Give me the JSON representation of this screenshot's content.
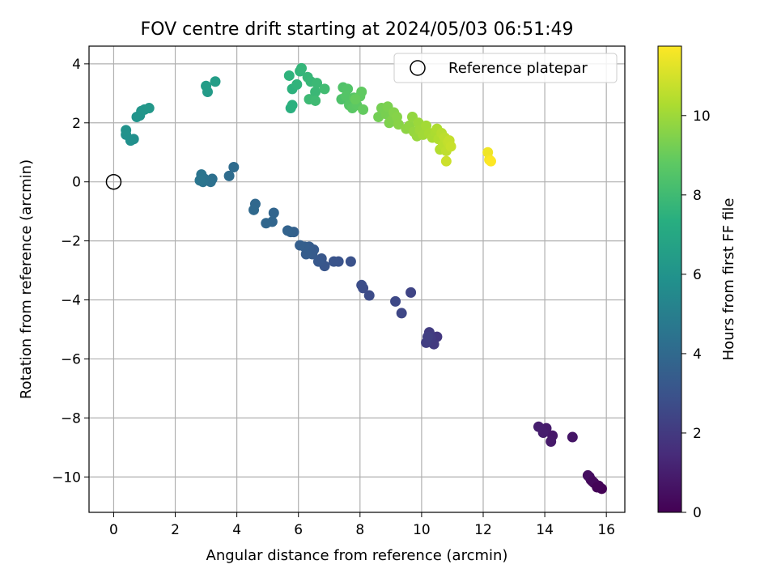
{
  "chart_data": {
    "type": "scatter",
    "title": "FOV centre drift starting at 2024/05/03 06:51:49",
    "xlabel": "Angular distance from reference (arcmin)",
    "ylabel": "Rotation from reference (arcmin)",
    "xlim": [
      -0.8,
      16.6
    ],
    "ylim": [
      -11.2,
      4.6
    ],
    "xticks": [
      0,
      2,
      4,
      6,
      8,
      10,
      12,
      14,
      16
    ],
    "yticks": [
      4,
      2,
      0,
      -2,
      -4,
      -6,
      -8,
      -10
    ],
    "xtick_labels": [
      "0",
      "2",
      "4",
      "6",
      "8",
      "10",
      "12",
      "14",
      "16"
    ],
    "ytick_labels": [
      "4",
      "2",
      "0",
      "−2",
      "−4",
      "−6",
      "−8",
      "−10"
    ],
    "grid": true,
    "legend": {
      "position": "top-right",
      "entries": [
        {
          "label": "Reference platepar",
          "marker": "open-circle",
          "x": 0,
          "y": 0
        }
      ]
    },
    "colorbar": {
      "label": "Hours from first FF file",
      "range": [
        0,
        11.75
      ],
      "ticks": [
        0,
        2,
        4,
        6,
        8,
        10
      ],
      "tick_labels": [
        "0",
        "2",
        "4",
        "6",
        "8",
        "10"
      ],
      "colormap": "viridis"
    },
    "points": [
      {
        "x": 15.85,
        "y": -10.4,
        "h": 0.05
      },
      {
        "x": 15.75,
        "y": -10.3,
        "h": 0.15
      },
      {
        "x": 15.6,
        "y": -10.2,
        "h": 0.25
      },
      {
        "x": 15.5,
        "y": -10.1,
        "h": 0.35
      },
      {
        "x": 15.45,
        "y": -10.0,
        "h": 0.4
      },
      {
        "x": 15.4,
        "y": -9.95,
        "h": 0.45
      },
      {
        "x": 15.55,
        "y": -10.15,
        "h": 0.3
      },
      {
        "x": 15.7,
        "y": -10.35,
        "h": 0.1
      },
      {
        "x": 14.9,
        "y": -8.65,
        "h": 0.7
      },
      {
        "x": 14.25,
        "y": -8.6,
        "h": 0.8
      },
      {
        "x": 14.2,
        "y": -8.8,
        "h": 0.85
      },
      {
        "x": 14.05,
        "y": -8.35,
        "h": 0.9
      },
      {
        "x": 13.95,
        "y": -8.5,
        "h": 0.95
      },
      {
        "x": 13.8,
        "y": -8.3,
        "h": 1.0
      },
      {
        "x": 10.5,
        "y": -5.25,
        "h": 1.9
      },
      {
        "x": 10.4,
        "y": -5.5,
        "h": 2.0
      },
      {
        "x": 10.3,
        "y": -5.3,
        "h": 2.05
      },
      {
        "x": 10.25,
        "y": -5.1,
        "h": 2.1
      },
      {
        "x": 10.15,
        "y": -5.45,
        "h": 2.15
      },
      {
        "x": 10.2,
        "y": -5.25,
        "h": 2.2
      },
      {
        "x": 9.65,
        "y": -3.75,
        "h": 2.4
      },
      {
        "x": 9.35,
        "y": -4.45,
        "h": 2.5
      },
      {
        "x": 9.15,
        "y": -4.05,
        "h": 2.6
      },
      {
        "x": 8.3,
        "y": -3.85,
        "h": 2.7
      },
      {
        "x": 8.1,
        "y": -3.6,
        "h": 2.75
      },
      {
        "x": 8.05,
        "y": -3.5,
        "h": 2.8
      },
      {
        "x": 7.7,
        "y": -2.7,
        "h": 2.95
      },
      {
        "x": 7.3,
        "y": -2.7,
        "h": 3.0
      },
      {
        "x": 7.15,
        "y": -2.7,
        "h": 3.05
      },
      {
        "x": 6.85,
        "y": -2.85,
        "h": 3.1
      },
      {
        "x": 6.75,
        "y": -2.6,
        "h": 3.15
      },
      {
        "x": 6.65,
        "y": -2.7,
        "h": 3.2
      },
      {
        "x": 6.5,
        "y": -2.3,
        "h": 3.3
      },
      {
        "x": 6.45,
        "y": -2.45,
        "h": 3.35
      },
      {
        "x": 6.35,
        "y": -2.2,
        "h": 3.4
      },
      {
        "x": 6.25,
        "y": -2.45,
        "h": 3.45
      },
      {
        "x": 6.2,
        "y": -2.2,
        "h": 3.5
      },
      {
        "x": 6.05,
        "y": -2.15,
        "h": 3.55
      },
      {
        "x": 5.85,
        "y": -1.7,
        "h": 3.6
      },
      {
        "x": 5.75,
        "y": -1.7,
        "h": 3.65
      },
      {
        "x": 5.65,
        "y": -1.65,
        "h": 3.7
      },
      {
        "x": 5.2,
        "y": -1.05,
        "h": 3.8
      },
      {
        "x": 5.15,
        "y": -1.35,
        "h": 3.85
      },
      {
        "x": 4.95,
        "y": -1.4,
        "h": 3.9
      },
      {
        "x": 4.6,
        "y": -0.75,
        "h": 3.95
      },
      {
        "x": 4.55,
        "y": -0.95,
        "h": 4.0
      },
      {
        "x": 3.9,
        "y": 0.5,
        "h": 4.1
      },
      {
        "x": 3.75,
        "y": 0.2,
        "h": 4.15
      },
      {
        "x": 3.2,
        "y": 0.1,
        "h": 4.3
      },
      {
        "x": 3.15,
        "y": 0.0,
        "h": 4.35
      },
      {
        "x": 2.95,
        "y": 0.1,
        "h": 4.4
      },
      {
        "x": 2.9,
        "y": 0.0,
        "h": 4.45
      },
      {
        "x": 2.85,
        "y": 0.25,
        "h": 4.5
      },
      {
        "x": 2.8,
        "y": 0.05,
        "h": 4.55
      },
      {
        "x": 0.65,
        "y": 1.45,
        "h": 5.8
      },
      {
        "x": 0.55,
        "y": 1.4,
        "h": 5.85
      },
      {
        "x": 0.4,
        "y": 1.6,
        "h": 5.9
      },
      {
        "x": 0.4,
        "y": 1.75,
        "h": 5.95
      },
      {
        "x": 0.75,
        "y": 2.2,
        "h": 6.0
      },
      {
        "x": 0.85,
        "y": 2.25,
        "h": 6.05
      },
      {
        "x": 0.9,
        "y": 2.4,
        "h": 6.1
      },
      {
        "x": 1.0,
        "y": 2.45,
        "h": 6.15
      },
      {
        "x": 1.15,
        "y": 2.5,
        "h": 6.2
      },
      {
        "x": 3.05,
        "y": 3.05,
        "h": 6.4
      },
      {
        "x": 3.0,
        "y": 3.25,
        "h": 6.45
      },
      {
        "x": 3.3,
        "y": 3.4,
        "h": 6.5
      },
      {
        "x": 5.75,
        "y": 2.5,
        "h": 7.4
      },
      {
        "x": 5.8,
        "y": 2.6,
        "h": 7.45
      },
      {
        "x": 5.8,
        "y": 3.15,
        "h": 7.5
      },
      {
        "x": 5.7,
        "y": 3.6,
        "h": 7.55
      },
      {
        "x": 5.95,
        "y": 3.3,
        "h": 7.6
      },
      {
        "x": 6.05,
        "y": 3.75,
        "h": 7.65
      },
      {
        "x": 6.1,
        "y": 3.85,
        "h": 7.7
      },
      {
        "x": 6.3,
        "y": 3.55,
        "h": 7.75
      },
      {
        "x": 6.4,
        "y": 3.4,
        "h": 7.8
      },
      {
        "x": 6.55,
        "y": 3.05,
        "h": 7.85
      },
      {
        "x": 6.6,
        "y": 3.35,
        "h": 7.9
      },
      {
        "x": 6.35,
        "y": 2.8,
        "h": 7.95
      },
      {
        "x": 6.55,
        "y": 2.75,
        "h": 8.0
      },
      {
        "x": 6.85,
        "y": 3.15,
        "h": 8.05
      },
      {
        "x": 7.4,
        "y": 2.8,
        "h": 8.4
      },
      {
        "x": 7.45,
        "y": 3.2,
        "h": 8.45
      },
      {
        "x": 7.6,
        "y": 3.15,
        "h": 8.5
      },
      {
        "x": 7.55,
        "y": 2.9,
        "h": 8.55
      },
      {
        "x": 7.65,
        "y": 2.6,
        "h": 8.6
      },
      {
        "x": 7.8,
        "y": 2.85,
        "h": 8.65
      },
      {
        "x": 7.75,
        "y": 2.5,
        "h": 8.7
      },
      {
        "x": 7.9,
        "y": 2.6,
        "h": 8.75
      },
      {
        "x": 8.0,
        "y": 2.9,
        "h": 8.8
      },
      {
        "x": 8.05,
        "y": 3.05,
        "h": 8.85
      },
      {
        "x": 8.1,
        "y": 2.45,
        "h": 8.9
      },
      {
        "x": 7.85,
        "y": 2.8,
        "h": 8.95
      },
      {
        "x": 8.6,
        "y": 2.2,
        "h": 9.2
      },
      {
        "x": 8.7,
        "y": 2.5,
        "h": 9.25
      },
      {
        "x": 8.85,
        "y": 2.3,
        "h": 9.3
      },
      {
        "x": 8.9,
        "y": 2.55,
        "h": 9.35
      },
      {
        "x": 8.95,
        "y": 2.0,
        "h": 9.4
      },
      {
        "x": 9.05,
        "y": 2.1,
        "h": 9.45
      },
      {
        "x": 9.1,
        "y": 2.35,
        "h": 9.5
      },
      {
        "x": 9.2,
        "y": 2.2,
        "h": 9.55
      },
      {
        "x": 9.25,
        "y": 1.95,
        "h": 9.6
      },
      {
        "x": 9.5,
        "y": 1.8,
        "h": 9.7
      },
      {
        "x": 9.6,
        "y": 1.9,
        "h": 9.75
      },
      {
        "x": 9.7,
        "y": 2.2,
        "h": 9.8
      },
      {
        "x": 9.75,
        "y": 1.7,
        "h": 9.85
      },
      {
        "x": 9.85,
        "y": 1.55,
        "h": 9.9
      },
      {
        "x": 9.9,
        "y": 2.0,
        "h": 9.95
      },
      {
        "x": 9.95,
        "y": 1.75,
        "h": 10.0
      },
      {
        "x": 10.05,
        "y": 1.6,
        "h": 10.05
      },
      {
        "x": 10.15,
        "y": 1.9,
        "h": 10.1
      },
      {
        "x": 10.25,
        "y": 1.65,
        "h": 10.15
      },
      {
        "x": 10.35,
        "y": 1.5,
        "h": 10.2
      },
      {
        "x": 10.45,
        "y": 1.7,
        "h": 10.25
      },
      {
        "x": 10.5,
        "y": 1.8,
        "h": 10.3
      },
      {
        "x": 10.55,
        "y": 1.45,
        "h": 10.35
      },
      {
        "x": 10.6,
        "y": 1.1,
        "h": 10.4
      },
      {
        "x": 10.65,
        "y": 1.65,
        "h": 10.45
      },
      {
        "x": 10.7,
        "y": 1.25,
        "h": 10.5
      },
      {
        "x": 10.75,
        "y": 1.5,
        "h": 10.55
      },
      {
        "x": 10.8,
        "y": 1.05,
        "h": 10.6
      },
      {
        "x": 10.85,
        "y": 1.35,
        "h": 10.65
      },
      {
        "x": 10.9,
        "y": 1.4,
        "h": 10.7
      },
      {
        "x": 10.95,
        "y": 1.2,
        "h": 10.75
      },
      {
        "x": 10.8,
        "y": 0.7,
        "h": 10.85
      },
      {
        "x": 12.15,
        "y": 1.0,
        "h": 11.5
      },
      {
        "x": 12.2,
        "y": 0.75,
        "h": 11.6
      },
      {
        "x": 12.25,
        "y": 0.7,
        "h": 11.75
      }
    ]
  }
}
